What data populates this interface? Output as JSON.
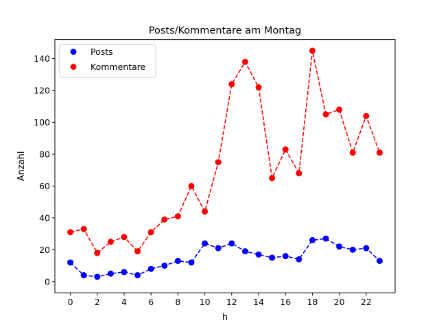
{
  "chart_data": {
    "type": "line",
    "title": "Posts/Kommentare am Montag",
    "xlabel": "h",
    "ylabel": "Anzahl",
    "xlim": [
      -1.15,
      24.15
    ],
    "ylim": [
      -7.05,
      152.05
    ],
    "xticks": [
      0,
      2,
      4,
      6,
      8,
      10,
      12,
      14,
      16,
      18,
      20,
      22
    ],
    "yticks": [
      0,
      20,
      40,
      60,
      80,
      100,
      120,
      140
    ],
    "grid": false,
    "legend_position": "top-left",
    "x": [
      0,
      1,
      2,
      3,
      4,
      5,
      6,
      7,
      8,
      9,
      10,
      11,
      12,
      13,
      14,
      15,
      16,
      17,
      18,
      19,
      20,
      21,
      22,
      23
    ],
    "series": [
      {
        "name": "Posts",
        "color": "#0000ff",
        "values": [
          12,
          4,
          3,
          5,
          6,
          4,
          8,
          10,
          13,
          12,
          24,
          21,
          24,
          19,
          17,
          15,
          16,
          14,
          26,
          27,
          22,
          20,
          21,
          13
        ]
      },
      {
        "name": "Kommentare",
        "color": "#ff0000",
        "values": [
          31,
          33,
          18,
          25,
          28,
          19,
          31,
          39,
          41,
          60,
          44,
          75,
          124,
          138,
          122,
          65,
          83,
          68,
          145,
          105,
          108,
          81,
          104,
          81
        ]
      }
    ]
  }
}
